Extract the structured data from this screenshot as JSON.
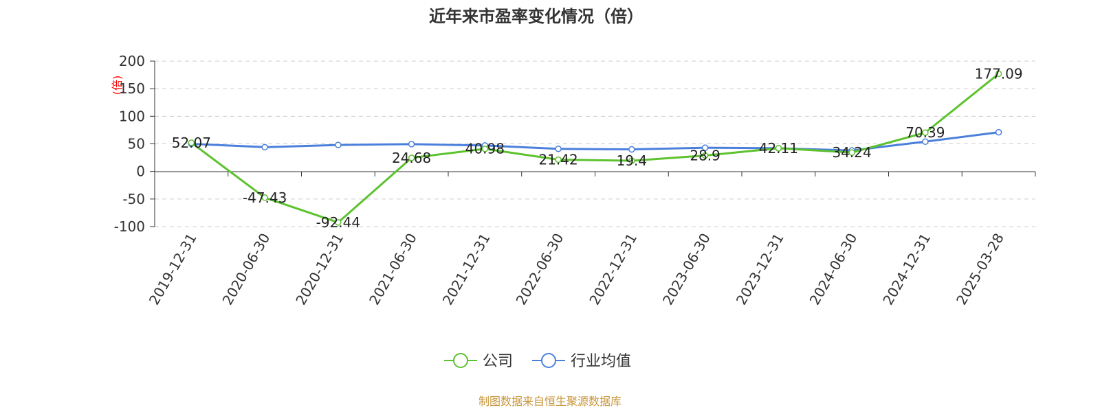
{
  "chart_data": {
    "type": "line",
    "title": "近年来市盈率变化情况（倍）",
    "ylabel": "(倍)",
    "ylim": [
      -100,
      200
    ],
    "yticks": [
      200,
      150,
      100,
      50,
      0,
      -50,
      -100
    ],
    "grid": true,
    "legend_position": "bottom",
    "categories": [
      "2019-12-31",
      "2020-06-30",
      "2020-12-31",
      "2021-06-30",
      "2021-12-31",
      "2022-06-30",
      "2022-12-31",
      "2023-06-30",
      "2023-12-31",
      "2024-06-30",
      "2024-12-31",
      "2025-03-28"
    ],
    "series": [
      {
        "name": "公司",
        "color": "#5cc22e",
        "values": [
          52.07,
          -47.43,
          -92.44,
          24.68,
          40.98,
          21.42,
          19.4,
          28.9,
          42.11,
          34.24,
          70.39,
          177.09
        ],
        "labels": [
          "52.07",
          "-47.43",
          "-92.44",
          "24.68",
          "40.98",
          "21.42",
          "19.4",
          "28.9",
          "42.11",
          "34.24",
          "70.39",
          "177.09"
        ]
      },
      {
        "name": "行业均值",
        "color": "#4a7fdc",
        "values": [
          50,
          44,
          48,
          49.5,
          47,
          41,
          40,
          43,
          42,
          38,
          54,
          71
        ]
      }
    ],
    "source": "制图数据来自恒生聚源数据库"
  },
  "colors": {
    "ylabel": "#ff0000",
    "source": "#c8963c",
    "axis": "#333333",
    "grid": "#cccccc"
  }
}
